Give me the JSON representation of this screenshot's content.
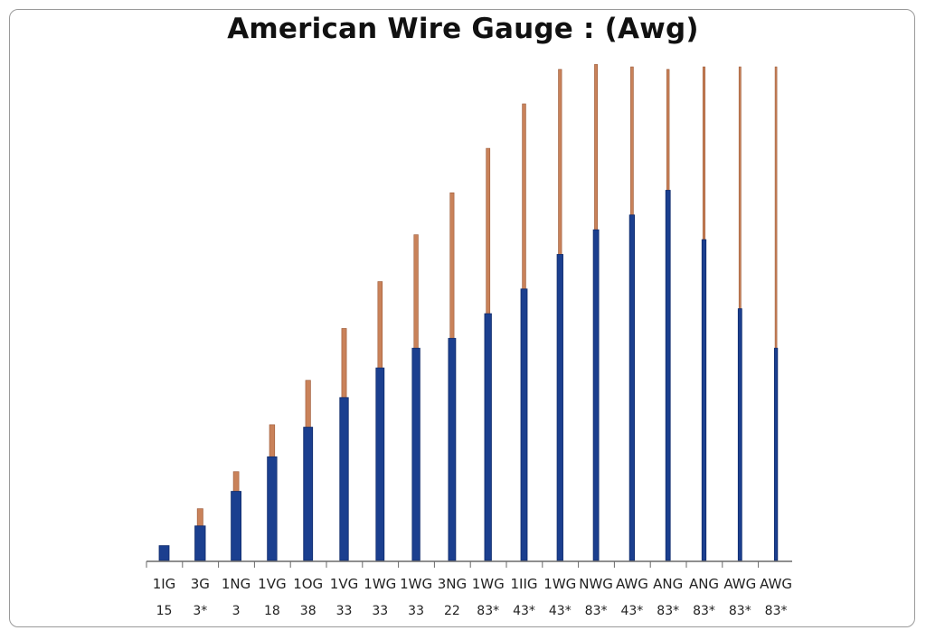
{
  "chart_data": {
    "type": "bar",
    "title": "American Wire Gauge : (Awg)",
    "xlabel": "",
    "ylabel": "",
    "ylim": [
      0,
      100
    ],
    "grid": false,
    "colors": {
      "insulation": "#1b3f8f",
      "insulation_edge": "#0e2a6b",
      "copper": "#c9825a",
      "copper_edge": "#9c5a38"
    },
    "categories": [
      "1IG",
      "3G",
      "1NG",
      "1VG",
      "1OG",
      "1VG",
      "1WG",
      "1WG",
      "3NG",
      "1WG",
      "1IIG",
      "1WG",
      "NWG",
      "AWG",
      "ANG",
      "ANG",
      "AWG",
      "AWG"
    ],
    "sublabels": [
      "15",
      "3*",
      "3",
      "18",
      "38",
      "33",
      "33",
      "33",
      "22",
      "83*",
      "43*",
      "43*",
      "83*",
      "43*",
      "83*",
      "83*",
      "83*",
      "83*"
    ],
    "series": [
      {
        "values": [
          3,
          7,
          14,
          21,
          27,
          33,
          39,
          43,
          45,
          50,
          55,
          62,
          67,
          70,
          75,
          65,
          51,
          43
        ]
      },
      {
        "values": [
          0,
          3.5,
          4,
          6.5,
          9.5,
          14,
          17.5,
          23,
          29.5,
          33.5,
          37.5,
          37.5,
          33.5,
          30,
          24.5,
          35,
          49,
          57
        ]
      }
    ]
  }
}
